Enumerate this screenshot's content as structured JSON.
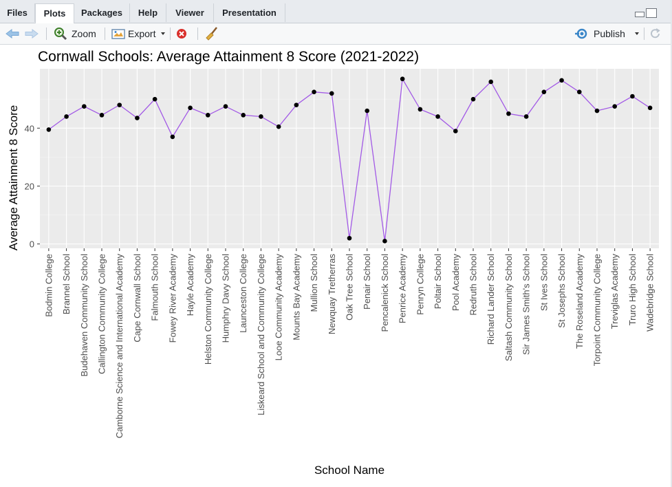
{
  "tabs": [
    {
      "label": "Files",
      "active": false
    },
    {
      "label": "Plots",
      "active": true
    },
    {
      "label": "Packages",
      "active": false
    },
    {
      "label": "Help",
      "active": false
    },
    {
      "label": "Viewer",
      "active": false
    },
    {
      "label": "Presentation",
      "active": false
    }
  ],
  "toolbar": {
    "back_icon": "arrow-left-icon",
    "forward_icon": "arrow-right-icon",
    "zoom_label": "Zoom",
    "export_label": "Export",
    "remove_icon": "remove-plot-icon",
    "clear_icon": "broom-icon",
    "publish_label": "Publish",
    "refresh_icon": "refresh-icon"
  },
  "colors": {
    "line": "#a259e6",
    "point": "#000000",
    "panel": "#ebebeb",
    "grid": "#ffffff"
  },
  "chart_data": {
    "type": "line",
    "title": "Cornwall Schools: Average Attainment 8 Score (2021-2022)",
    "xlabel": "School Name",
    "ylabel": "Average Attainment 8 Score",
    "ylim": [
      -1.5,
      60.5
    ],
    "yticks": [
      0,
      20,
      40
    ],
    "grid": true,
    "legend": "none",
    "categories": [
      "Bodmin College",
      "Brannel School",
      "Budehaven Community School",
      "Callington Community College",
      "Camborne Science and International Academy",
      "Cape Cornwall School",
      "Falmouth School",
      "Fowey River Academy",
      "Hayle Academy",
      "Helston Community College",
      "Humphry Davy School",
      "Launceston College",
      "Liskeard School and Community College",
      "Looe Community Academy",
      "Mounts Bay Academy",
      "Mullion School",
      "Newquay Tretherras",
      "Oak Tree School",
      "Penair School",
      "Pencalenick School",
      "Penrice Academy",
      "Penryn College",
      "Poltair School",
      "Pool Academy",
      "Redruth School",
      "Richard Lander School",
      "Saltash Community School",
      "Sir James Smith's School",
      "St Ives School",
      "St Josephs School",
      "The Roseland Academy",
      "Torpoint Community College",
      "Treviglas Academy",
      "Truro High School",
      "Wadebridge School"
    ],
    "values": [
      39.5,
      44,
      47.5,
      44.5,
      48,
      43.5,
      50,
      37,
      47,
      44.5,
      47.5,
      44.5,
      44,
      40.5,
      48,
      52.5,
      52,
      2,
      46,
      1,
      57,
      46.5,
      44,
      39,
      50,
      56,
      45,
      44,
      52.5,
      56.5,
      52.5,
      46,
      47.5,
      51,
      47
    ]
  }
}
